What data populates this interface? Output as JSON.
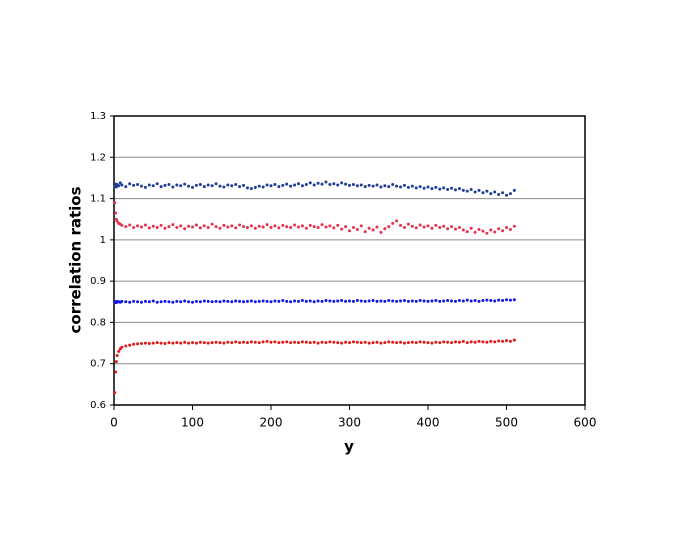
{
  "chart_data": {
    "type": "scatter",
    "x_label": "y",
    "y_label": "correlation ratios",
    "xlim": [
      0,
      600
    ],
    "xticks": [
      0,
      100,
      200,
      300,
      400,
      500,
      600
    ],
    "ylim": [
      0.6,
      1.3
    ],
    "yticks": [
      0.6,
      0.7,
      0.8,
      0.9,
      1,
      1.1,
      1.2,
      1.3
    ],
    "grid": true,
    "x": [
      1,
      2,
      3,
      4,
      6,
      8,
      10,
      15,
      20,
      25,
      30,
      35,
      40,
      45,
      50,
      55,
      60,
      65,
      70,
      75,
      80,
      85,
      90,
      95,
      100,
      105,
      110,
      115,
      120,
      125,
      130,
      135,
      140,
      145,
      150,
      155,
      160,
      165,
      170,
      175,
      180,
      185,
      190,
      195,
      200,
      205,
      210,
      215,
      220,
      225,
      230,
      235,
      240,
      245,
      250,
      255,
      260,
      265,
      270,
      275,
      280,
      285,
      290,
      295,
      300,
      305,
      310,
      315,
      320,
      325,
      330,
      335,
      340,
      345,
      350,
      355,
      360,
      365,
      370,
      375,
      380,
      385,
      390,
      395,
      400,
      405,
      410,
      415,
      420,
      425,
      430,
      435,
      440,
      445,
      450,
      455,
      460,
      465,
      470,
      475,
      480,
      485,
      490,
      495,
      500,
      505,
      510
    ],
    "series": [
      {
        "color": "#1f3c96",
        "values": [
          1.13,
          1.135,
          1.128,
          1.134,
          1.131,
          1.138,
          1.133,
          1.129,
          1.136,
          1.132,
          1.134,
          1.13,
          1.127,
          1.133,
          1.131,
          1.136,
          1.129,
          1.132,
          1.134,
          1.128,
          1.133,
          1.131,
          1.135,
          1.13,
          1.127,
          1.132,
          1.134,
          1.129,
          1.133,
          1.131,
          1.136,
          1.13,
          1.128,
          1.133,
          1.131,
          1.134,
          1.129,
          1.132,
          1.126,
          1.124,
          1.127,
          1.13,
          1.128,
          1.133,
          1.131,
          1.134,
          1.129,
          1.132,
          1.135,
          1.13,
          1.133,
          1.136,
          1.131,
          1.134,
          1.138,
          1.133,
          1.137,
          1.135,
          1.14,
          1.134,
          1.136,
          1.133,
          1.138,
          1.135,
          1.132,
          1.134,
          1.131,
          1.133,
          1.129,
          1.132,
          1.13,
          1.133,
          1.128,
          1.131,
          1.129,
          1.134,
          1.13,
          1.128,
          1.132,
          1.127,
          1.13,
          1.126,
          1.129,
          1.125,
          1.128,
          1.124,
          1.127,
          1.123,
          1.126,
          1.122,
          1.125,
          1.121,
          1.124,
          1.12,
          1.118,
          1.122,
          1.116,
          1.12,
          1.114,
          1.118,
          1.112,
          1.116,
          1.11,
          1.114,
          1.108,
          1.112,
          1.12
        ]
      },
      {
        "color": "#e8304e",
        "values": [
          1.09,
          1.065,
          1.05,
          1.045,
          1.04,
          1.038,
          1.035,
          1.032,
          1.036,
          1.03,
          1.034,
          1.031,
          1.036,
          1.029,
          1.033,
          1.03,
          1.035,
          1.028,
          1.032,
          1.037,
          1.03,
          1.034,
          1.027,
          1.033,
          1.031,
          1.036,
          1.029,
          1.034,
          1.03,
          1.038,
          1.032,
          1.028,
          1.035,
          1.031,
          1.034,
          1.029,
          1.036,
          1.032,
          1.03,
          1.034,
          1.028,
          1.033,
          1.031,
          1.037,
          1.03,
          1.034,
          1.029,
          1.035,
          1.032,
          1.03,
          1.036,
          1.031,
          1.034,
          1.028,
          1.035,
          1.032,
          1.03,
          1.037,
          1.031,
          1.034,
          1.029,
          1.035,
          1.026,
          1.032,
          1.022,
          1.03,
          1.025,
          1.034,
          1.02,
          1.028,
          1.024,
          1.031,
          1.018,
          1.027,
          1.032,
          1.04,
          1.046,
          1.035,
          1.03,
          1.038,
          1.033,
          1.029,
          1.036,
          1.031,
          1.034,
          1.028,
          1.035,
          1.03,
          1.033,
          1.027,
          1.032,
          1.026,
          1.03,
          1.024,
          1.02,
          1.028,
          1.018,
          1.025,
          1.021,
          1.016,
          1.024,
          1.019,
          1.027,
          1.022,
          1.03,
          1.025,
          1.033
        ]
      },
      {
        "color": "#1414e6",
        "values": [
          0.849,
          0.85,
          0.848,
          0.851,
          0.85,
          0.849,
          0.851,
          0.85,
          0.849,
          0.851,
          0.85,
          0.849,
          0.851,
          0.85,
          0.852,
          0.849,
          0.85,
          0.851,
          0.85,
          0.849,
          0.851,
          0.85,
          0.852,
          0.85,
          0.849,
          0.851,
          0.85,
          0.852,
          0.851,
          0.85,
          0.851,
          0.85,
          0.852,
          0.851,
          0.85,
          0.852,
          0.851,
          0.85,
          0.851,
          0.852,
          0.85,
          0.851,
          0.852,
          0.851,
          0.85,
          0.852,
          0.851,
          0.853,
          0.851,
          0.85,
          0.852,
          0.851,
          0.853,
          0.851,
          0.852,
          0.85,
          0.852,
          0.851,
          0.853,
          0.852,
          0.851,
          0.852,
          0.853,
          0.851,
          0.852,
          0.851,
          0.853,
          0.852,
          0.851,
          0.852,
          0.853,
          0.851,
          0.852,
          0.851,
          0.853,
          0.852,
          0.851,
          0.852,
          0.853,
          0.851,
          0.852,
          0.851,
          0.853,
          0.852,
          0.851,
          0.852,
          0.853,
          0.851,
          0.852,
          0.853,
          0.852,
          0.851,
          0.853,
          0.852,
          0.854,
          0.852,
          0.853,
          0.851,
          0.853,
          0.854,
          0.853,
          0.852,
          0.854,
          0.853,
          0.855,
          0.854,
          0.855
        ]
      },
      {
        "color": "#e01818",
        "values": [
          0.63,
          0.68,
          0.705,
          0.72,
          0.73,
          0.736,
          0.74,
          0.743,
          0.745,
          0.747,
          0.748,
          0.749,
          0.75,
          0.749,
          0.75,
          0.751,
          0.75,
          0.749,
          0.751,
          0.75,
          0.751,
          0.75,
          0.752,
          0.75,
          0.751,
          0.75,
          0.752,
          0.751,
          0.75,
          0.751,
          0.752,
          0.751,
          0.75,
          0.752,
          0.751,
          0.753,
          0.751,
          0.752,
          0.751,
          0.753,
          0.752,
          0.751,
          0.753,
          0.754,
          0.752,
          0.753,
          0.751,
          0.752,
          0.753,
          0.751,
          0.752,
          0.751,
          0.753,
          0.752,
          0.751,
          0.752,
          0.75,
          0.752,
          0.751,
          0.753,
          0.752,
          0.751,
          0.75,
          0.752,
          0.751,
          0.753,
          0.752,
          0.751,
          0.752,
          0.75,
          0.751,
          0.752,
          0.75,
          0.751,
          0.753,
          0.752,
          0.751,
          0.752,
          0.75,
          0.751,
          0.752,
          0.751,
          0.753,
          0.752,
          0.751,
          0.75,
          0.752,
          0.751,
          0.753,
          0.752,
          0.751,
          0.753,
          0.752,
          0.754,
          0.751,
          0.753,
          0.752,
          0.754,
          0.753,
          0.752,
          0.754,
          0.753,
          0.755,
          0.754,
          0.756,
          0.754,
          0.757
        ]
      }
    ]
  }
}
